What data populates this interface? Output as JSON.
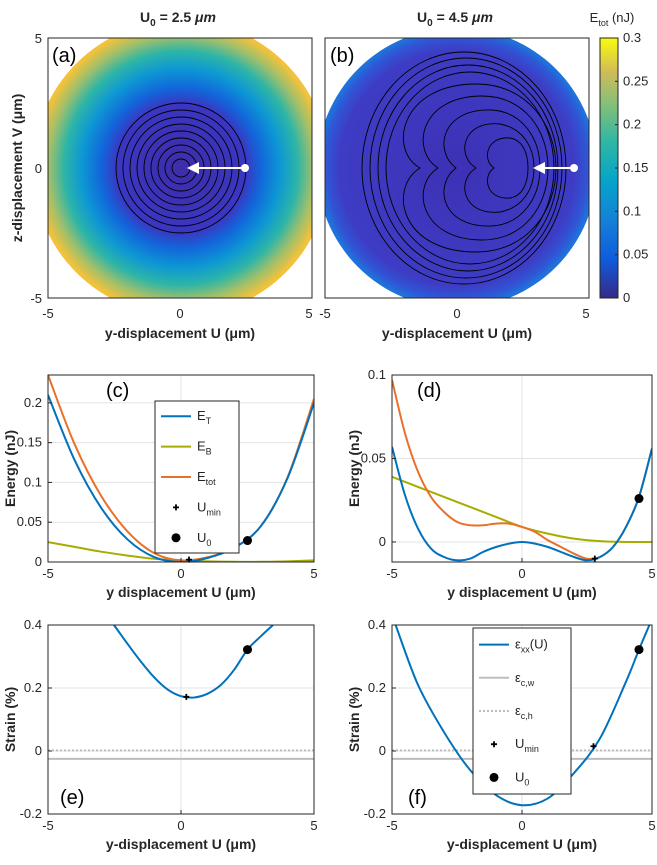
{
  "colors": {
    "E_T": "#0072BD",
    "E_B": "#A6AD00",
    "E_tot": "#E8712A",
    "strain": "#0072BD",
    "eps_cw": "#BDBDBD",
    "eps_ch": "#BDBDBD",
    "contour": "#000000",
    "arrow": "#ffffff"
  },
  "heatmaps": [
    {
      "panel": "(a)",
      "title_prefix": "U",
      "title_sub": "0",
      "title_value": " = 2.5 ",
      "title_unit": "μm",
      "xlabel": "y-displacement U (μm)",
      "ylabel": "z-displacement V (μm)",
      "xlim": [
        -5,
        5
      ],
      "ylim": [
        -5,
        5
      ],
      "xticks": [
        "-5",
        "0",
        "5"
      ],
      "yticks": [
        "5",
        "0",
        "-5"
      ],
      "start_point": [
        2.5,
        0
      ],
      "arrow_end": [
        0.3,
        0
      ]
    },
    {
      "panel": "(b)",
      "title_prefix": "U",
      "title_sub": "0",
      "title_value": " = 4.5 ",
      "title_unit": "μm",
      "xlabel": "y-displacement U (μm)",
      "xlim": [
        -5,
        5
      ],
      "ylim": [
        -5,
        5
      ],
      "xticks": [
        "-5",
        "0",
        "5"
      ],
      "start_point": [
        4.5,
        0
      ],
      "arrow_end": [
        3.0,
        0
      ]
    }
  ],
  "colorbar": {
    "label_main": "E",
    "label_sub": "tot",
    "label_unit": " (nJ)",
    "min": 0,
    "max": 0.3,
    "ticks": [
      "0.3",
      "0.25",
      "0.2",
      "0.15",
      "0.1",
      "0.05",
      "0"
    ]
  },
  "chart_data": [
    {
      "panel": "(c)",
      "type": "line",
      "xlabel": "y displacement U (μm)",
      "ylabel": "Energy (nJ)",
      "xlim": [
        -5,
        5
      ],
      "ylim": [
        0,
        0.235
      ],
      "xticks": [
        "-5",
        "0",
        "5"
      ],
      "yticks": [
        "0",
        "0.05",
        "0.1",
        "0.15",
        "0.2"
      ],
      "grid": true,
      "legend": [
        "E_T",
        "E_B",
        "E_tot",
        "U_min",
        "U_0"
      ],
      "series": [
        {
          "name": "E_T",
          "x": [
            -5,
            -4,
            -3,
            -2,
            -1,
            0,
            1,
            2,
            3,
            4,
            5
          ],
          "y": [
            0.21,
            0.128,
            0.068,
            0.028,
            0.006,
            0,
            0.005,
            0.018,
            0.045,
            0.105,
            0.2
          ]
        },
        {
          "name": "E_B",
          "x": [
            -5,
            -4,
            -3,
            -2,
            -1,
            0,
            1,
            2,
            3,
            4,
            5
          ],
          "y": [
            0.025,
            0.019,
            0.013,
            0.008,
            0.004,
            0.002,
            0.0008,
            0.0003,
            0.0002,
            0.0008,
            0.002
          ]
        },
        {
          "name": "E_tot",
          "x": [
            -5,
            -4,
            -3,
            -2,
            -1,
            0,
            1,
            2,
            3,
            4,
            5
          ],
          "y": [
            0.235,
            0.148,
            0.083,
            0.038,
            0.011,
            0.002,
            0.006,
            0.018,
            0.045,
            0.106,
            0.205
          ]
        }
      ],
      "U_min": [
        0.3,
        0.003
      ],
      "U_0": [
        2.5,
        0.027
      ]
    },
    {
      "panel": "(d)",
      "type": "line",
      "xlabel": "y displacement U (μm)",
      "ylabel": "Energy (nJ)",
      "xlim": [
        -5,
        5
      ],
      "ylim": [
        -0.012,
        0.1
      ],
      "xticks": [
        "-5",
        "0",
        "5"
      ],
      "yticks": [
        "0",
        "0.05",
        "0.1"
      ],
      "grid": true,
      "series": [
        {
          "name": "E_T",
          "x": [
            -5,
            -4.5,
            -4,
            -3.5,
            -3,
            -2.5,
            -2,
            -1.5,
            -1,
            -0.5,
            0,
            0.5,
            1,
            1.5,
            2,
            2.5,
            3,
            3.5,
            4,
            4.5,
            5
          ],
          "y": [
            0.057,
            0.028,
            0.008,
            -0.004,
            -0.009,
            -0.011,
            -0.01,
            -0.006,
            -0.003,
            -0.001,
            0,
            -0.001,
            -0.003,
            -0.006,
            -0.009,
            -0.011,
            -0.009,
            -0.003,
            0.009,
            0.027,
            0.056
          ]
        },
        {
          "name": "E_B",
          "x": [
            -5,
            -4,
            -3,
            -2,
            -1,
            0,
            1,
            2,
            3,
            4,
            5
          ],
          "y": [
            0.039,
            0.033,
            0.027,
            0.021,
            0.015,
            0.009,
            0.005,
            0.002,
            0.0005,
            0,
            0
          ]
        },
        {
          "name": "E_tot",
          "x": [
            -5,
            -4.5,
            -4,
            -3.5,
            -3,
            -2.5,
            -2,
            -1.5,
            -1,
            -0.5,
            0,
            0.5,
            1,
            1.5,
            2,
            2.5,
            3,
            3.5,
            4,
            4.5,
            5
          ],
          "y": [
            0.097,
            0.065,
            0.042,
            0.027,
            0.018,
            0.012,
            0.01,
            0.01,
            0.011,
            0.011,
            0.009,
            0.006,
            0.001,
            -0.003,
            -0.007,
            -0.01,
            -0.009,
            -0.003,
            0.009,
            0.027,
            0.056
          ]
        }
      ],
      "U_min": [
        2.8,
        -0.01
      ],
      "U_0": [
        4.5,
        0.026
      ]
    },
    {
      "panel": "(e)",
      "type": "line",
      "xlabel": "y-displacement U (μm)",
      "ylabel": "Strain (%)",
      "xlim": [
        -5,
        5
      ],
      "ylim": [
        -0.2,
        0.4
      ],
      "xticks": [
        "-5",
        "0",
        "5"
      ],
      "yticks": [
        "-0.2",
        "0",
        "0.2",
        "0.4"
      ],
      "grid": true,
      "series": [
        {
          "name": "ε_xx(U)",
          "x": [
            -2.52,
            -2,
            -1.5,
            -1,
            -0.5,
            0,
            0.5,
            1,
            1.5,
            2,
            2.5,
            3,
            3.46
          ],
          "y": [
            0.4,
            0.339,
            0.283,
            0.233,
            0.195,
            0.174,
            0.17,
            0.182,
            0.21,
            0.258,
            0.322,
            0.364,
            0.4
          ]
        }
      ],
      "eps_cw": -0.025,
      "eps_ch": 0.002,
      "U_min": [
        0.2,
        0.172
      ],
      "U_0": [
        2.5,
        0.322
      ]
    },
    {
      "panel": "(f)",
      "type": "line",
      "xlabel": "y-displacement U (μm)",
      "ylabel": "Strain (%)",
      "xlim": [
        -5,
        5
      ],
      "ylim": [
        -0.2,
        0.4
      ],
      "xticks": [
        "-5",
        "0",
        "5"
      ],
      "yticks": [
        "-0.2",
        "0",
        "0.2",
        "0.4"
      ],
      "grid": true,
      "legend": [
        "ε_xx(U)",
        "ε_c,w",
        "ε_c,h",
        "U_min",
        "U_0"
      ],
      "series": [
        {
          "name": "ε_xx(U)",
          "x": [
            -4.86,
            -4,
            -3,
            -2,
            -1,
            0,
            1,
            2,
            3,
            4,
            4.5,
            4.9
          ],
          "y": [
            0.4,
            0.21,
            0.06,
            -0.06,
            -0.14,
            -0.172,
            -0.15,
            -0.07,
            0.04,
            0.22,
            0.322,
            0.4
          ]
        }
      ],
      "eps_cw": -0.025,
      "eps_ch": 0.002,
      "U_min": [
        2.75,
        0.015
      ],
      "U_0": [
        4.5,
        0.322
      ]
    }
  ]
}
